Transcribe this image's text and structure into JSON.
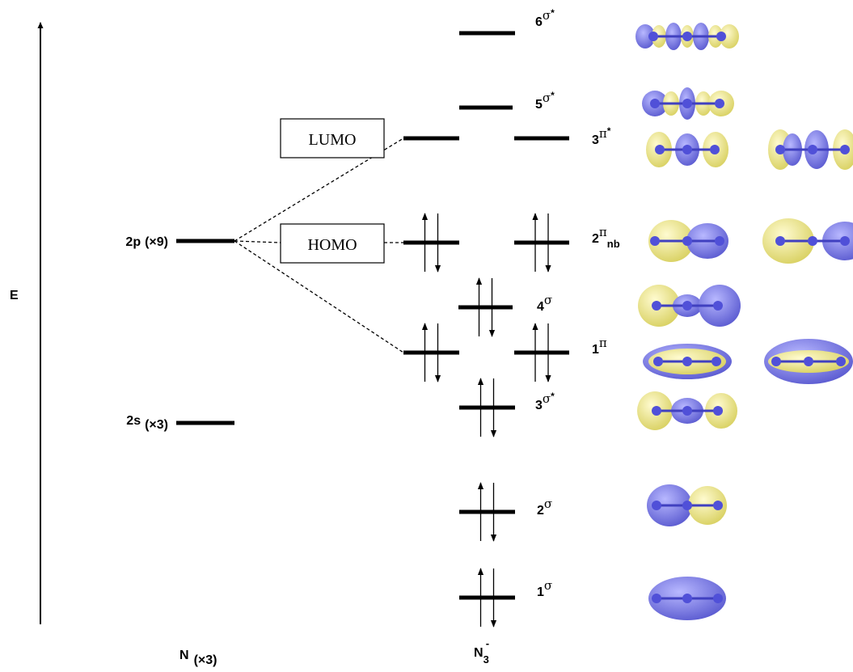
{
  "axis_label": "E",
  "atomic_levels": [
    {
      "label": "2p",
      "count": "(×9)"
    },
    {
      "label": "2s",
      "count": "(×3)"
    }
  ],
  "atom_label": {
    "text": "N",
    "count": "(×3)"
  },
  "molecule_label": {
    "text": "N",
    "sub": "3",
    "sup": "-"
  },
  "frontier": {
    "lumo": "LUMO",
    "homo": "HOMO"
  },
  "levels": [
    {
      "number": "6",
      "symbol": "σ",
      "sup": "*"
    },
    {
      "number": "5",
      "symbol": "σ",
      "sup": "*"
    },
    {
      "number": "3",
      "symbol": "π",
      "sup": "*"
    },
    {
      "number": "2",
      "symbol": "π",
      "sub": "nb"
    },
    {
      "number": "4",
      "symbol": "σ"
    },
    {
      "number": "1",
      "symbol": "π"
    },
    {
      "number": "3",
      "symbol": "σ",
      "sup": "*"
    },
    {
      "number": "2",
      "symbol": "σ"
    },
    {
      "number": "1",
      "symbol": "σ"
    }
  ]
}
